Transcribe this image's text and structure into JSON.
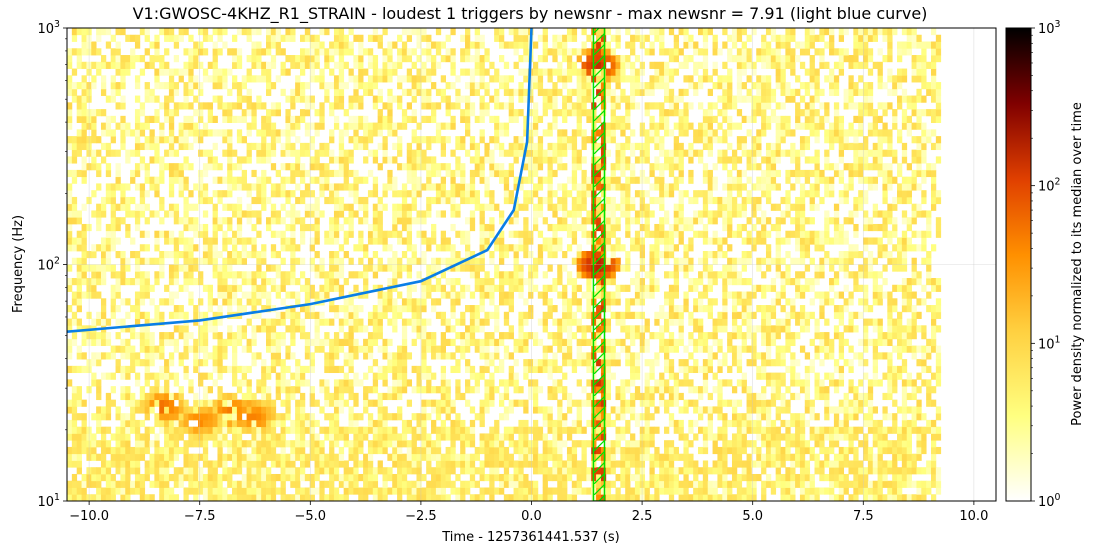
{
  "chart_data": {
    "type": "heatmap",
    "title": "V1:GWOSC-4KHZ_R1_STRAIN - loudest 1 triggers by newsnr - max newsnr = 7.91 (light blue curve)",
    "xlabel": "Time - 1257361441.537 (s)",
    "ylabel": "Frequency (Hz)",
    "xlim": [
      -10.5,
      10.5
    ],
    "ylim": [
      10,
      1000
    ],
    "yscale": "log",
    "grid": true,
    "x_ticks": [
      -10.0,
      -7.5,
      -5.0,
      -2.5,
      0.0,
      2.5,
      5.0,
      7.5,
      10.0
    ],
    "x_tick_labels": [
      "−10.0",
      "−7.5",
      "−5.0",
      "−2.5",
      "0.0",
      "2.5",
      "5.0",
      "7.5",
      "10.0"
    ],
    "y_ticks": [
      10,
      100,
      1000
    ],
    "y_tick_labels": [
      [
        "10",
        "1"
      ],
      [
        "10",
        "2"
      ],
      [
        "10",
        "3"
      ]
    ],
    "spectrogram_extent": {
      "t_start": -10.5,
      "t_end": 9.25,
      "f_min": 10,
      "f_max": 1000
    },
    "colormap": "afmhot_r",
    "colorbar": {
      "label": "Power density normalized to its median over time",
      "scale": "log",
      "range": [
        1,
        1000
      ],
      "ticks": [
        1,
        10,
        100,
        1000
      ],
      "tick_labels": [
        [
          "10",
          "0"
        ],
        [
          "10",
          "1"
        ],
        [
          "10",
          "2"
        ],
        [
          "10",
          "3"
        ]
      ]
    },
    "chirp_curve": {
      "color": "#0a7ee6",
      "t_end": 0.0,
      "points": [
        {
          "t": -10.5,
          "f": 52
        },
        {
          "t": -7.5,
          "f": 58
        },
        {
          "t": -5.0,
          "f": 68
        },
        {
          "t": -2.5,
          "f": 85
        },
        {
          "t": -1.0,
          "f": 115
        },
        {
          "t": -0.4,
          "f": 170
        },
        {
          "t": -0.1,
          "f": 330
        },
        {
          "t": 0.0,
          "f": 1000
        }
      ]
    },
    "trigger_band": {
      "t_start": 1.4,
      "t_end": 1.65,
      "color": "#00e000"
    },
    "hot_spots": [
      {
        "t": -8.3,
        "f": 25,
        "power": 60
      },
      {
        "t": -7.5,
        "f": 22,
        "power": 40
      },
      {
        "t": -6.8,
        "f": 24,
        "power": 50
      },
      {
        "t": -6.3,
        "f": 23,
        "power": 45
      },
      {
        "t": 1.5,
        "f": 100,
        "power": 200
      },
      {
        "t": 1.5,
        "f": 700,
        "power": 150
      }
    ]
  }
}
